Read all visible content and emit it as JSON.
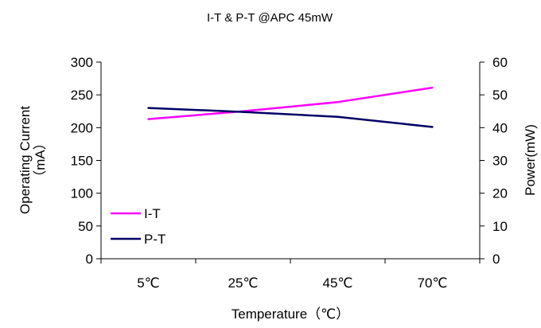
{
  "chart_data": {
    "type": "line",
    "title": "I-T & P-T @APC 45mW",
    "categories": [
      "5℃",
      "25℃",
      "45℃",
      "70℃"
    ],
    "xlabel": "Temperature（℃）",
    "ylabel_left": [
      "Operating Current",
      "（mA）"
    ],
    "ylabel_right": "Power(mW)",
    "y_left": {
      "min": 0,
      "max": 300,
      "step": 50,
      "ticks": [
        "0",
        "50",
        "100",
        "150",
        "200",
        "250",
        "300"
      ]
    },
    "y_right": {
      "min": 0,
      "max": 60,
      "step": 10,
      "ticks": [
        "0",
        "10",
        "20",
        "30",
        "40",
        "50",
        "60"
      ]
    },
    "grid": false,
    "legend": "bottom-left",
    "series": [
      {
        "name": "I-T",
        "axis": "left",
        "color": "#ff00ff",
        "values": [
          213,
          225,
          239,
          261
        ]
      },
      {
        "name": "P-T",
        "axis": "right",
        "color": "#000066",
        "values": [
          46,
          44.8,
          43.3,
          40.2
        ]
      }
    ]
  }
}
